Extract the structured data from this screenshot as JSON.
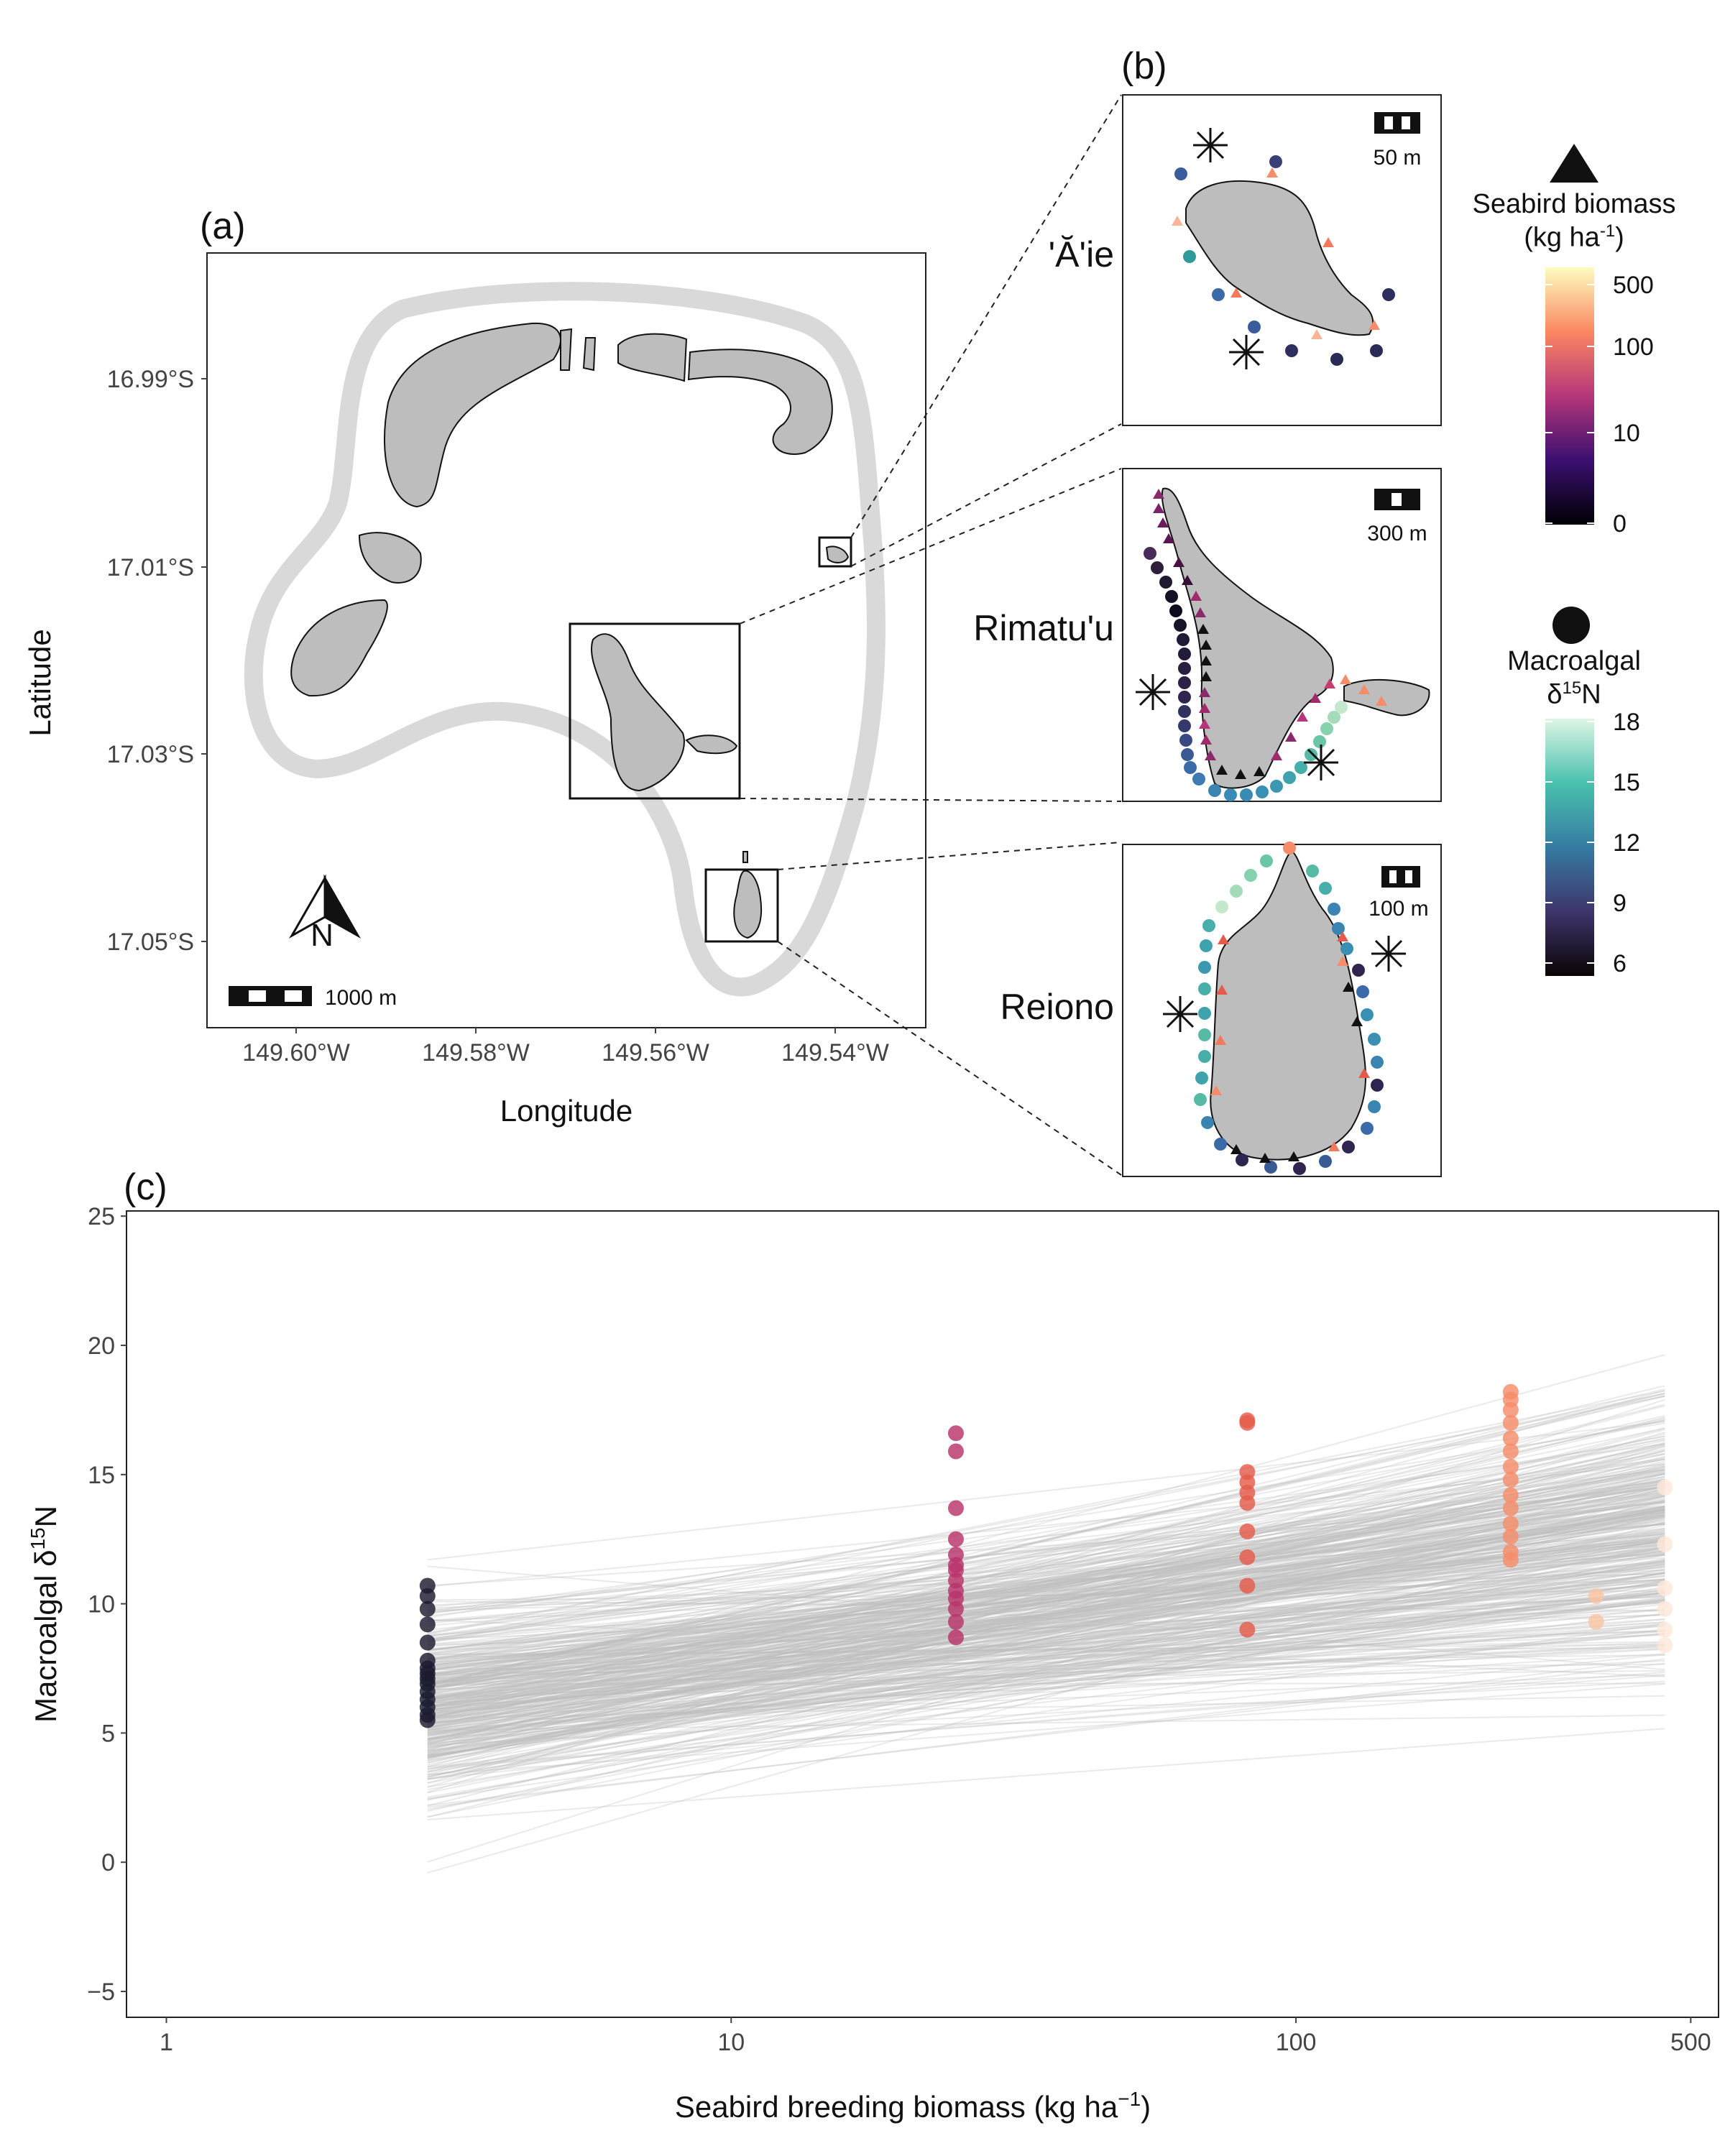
{
  "panels": {
    "a": "(a)",
    "b": "(b)",
    "c": "(c)"
  },
  "map_a": {
    "lat_ticks": [
      "16.99°S",
      "17.01°S",
      "17.03°S",
      "17.05°S"
    ],
    "lon_ticks": [
      "149.60°W",
      "149.58°W",
      "149.56°W",
      "149.54°W"
    ],
    "xlabel": "Longitude",
    "ylabel": "Latitude",
    "scale_label": "1000 m",
    "north_label": "N"
  },
  "sites": [
    {
      "name": "'Ă'ie",
      "scale_label": "50 m"
    },
    {
      "name": "Rimatu'u",
      "scale_label": "300 m"
    },
    {
      "name": "Reiono",
      "scale_label": "100 m"
    }
  ],
  "legend": {
    "seabird_title_line1": "Seabird biomass",
    "seabird_title_line2": "(kg ha",
    "seabird_title_sup": "-1",
    "seabird_title_end": ")",
    "seabird_ticks": [
      "500",
      "100",
      "10",
      "0"
    ],
    "algal_title_line1": "Macroalgal",
    "algal_title_delta": "δ",
    "algal_title_sup": "15",
    "algal_title_end": "N",
    "algal_ticks": [
      "18",
      "15",
      "12",
      "9",
      "6"
    ],
    "colors": {
      "magma_low": "#000004",
      "magma_mid": "#b5367a",
      "magma_high": "#fcfdbf",
      "mako_low": "#0b0405",
      "mako_mid": "#357ba2",
      "mako_high": "#def5e5"
    }
  },
  "chart_data": {
    "type": "scatter",
    "xlabel_main": "Seabird breeding biomass",
    "xlabel_unit": "(kg ha",
    "xlabel_sup": "−1",
    "xlabel_end": ")",
    "ylabel_main": "Macroalgal δ",
    "ylabel_sup": "15",
    "ylabel_end": "N",
    "xscale": "log",
    "xlim": [
      0.85,
      560
    ],
    "ylim": [
      -6,
      25.2
    ],
    "x_ticks": [
      1,
      10,
      100,
      500
    ],
    "x_tick_labels": [
      "1",
      "10",
      "100",
      "500"
    ],
    "y_ticks": [
      -5,
      0,
      5,
      10,
      15,
      20,
      25
    ],
    "y_tick_labels": [
      "−5",
      "0",
      "5",
      "10",
      "15",
      "20",
      "25"
    ],
    "fit_lines": {
      "count": 400,
      "center_intercept": 5.9,
      "center_slope": 3.05,
      "color": "#bdbdbd"
    },
    "series": [
      {
        "x": 2.9,
        "color": "#1c1a2e",
        "y": [
          10.7,
          10.3,
          9.8,
          9.2,
          8.5,
          7.8,
          7.5,
          7.3,
          7.1,
          6.9,
          6.6,
          6.3,
          6.0,
          5.7,
          5.5
        ]
      },
      {
        "x": 25,
        "color": "#b8336a",
        "y": [
          16.6,
          15.9,
          13.7,
          12.5,
          11.9,
          11.5,
          11.3,
          10.9,
          10.5,
          10.2,
          9.8,
          9.3,
          8.7
        ]
      },
      {
        "x": 82,
        "color": "#e55b4b",
        "y": [
          17.1,
          17.0,
          15.1,
          14.7,
          14.3,
          13.9,
          12.8,
          11.8,
          10.7,
          9.0
        ]
      },
      {
        "x": 240,
        "color": "#f58c6a",
        "y": [
          18.2,
          17.9,
          17.5,
          17.0,
          16.4,
          15.9,
          15.3,
          14.8,
          14.2,
          13.7,
          13.1,
          12.6,
          12.0,
          11.7
        ]
      },
      {
        "x": 340,
        "color": "#f9c4a3",
        "y": [
          10.3,
          9.3
        ]
      },
      {
        "x": 450,
        "color": "#fde8d8",
        "y": [
          14.5,
          12.3,
          10.6,
          9.8,
          9.0,
          8.4
        ]
      }
    ]
  }
}
